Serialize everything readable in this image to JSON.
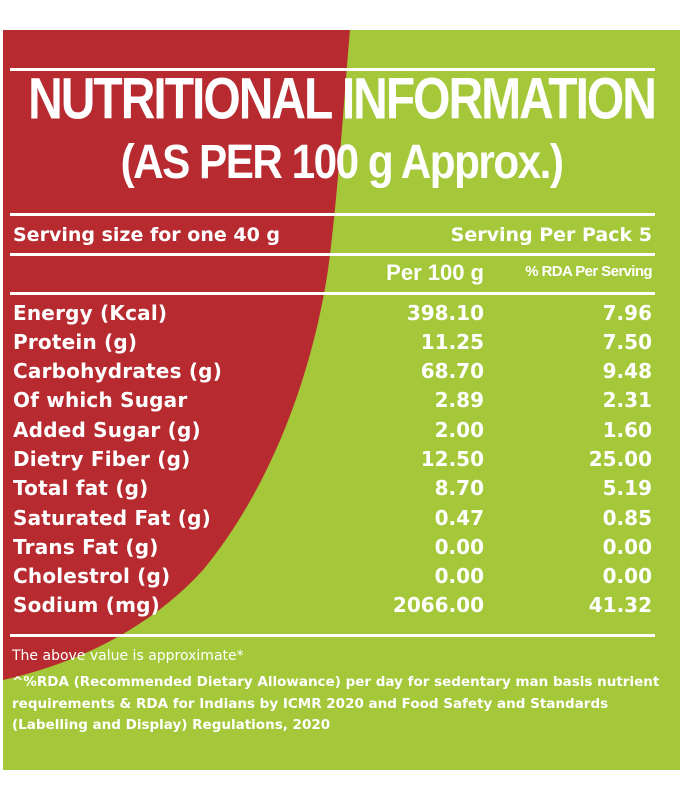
{
  "colors": {
    "red": "#b72b30",
    "green": "#a4c83a",
    "text": "#ffffff"
  },
  "title": {
    "main": "NUTRITIONAL INFORMATION",
    "sub": "(AS PER 100 g Approx.)"
  },
  "serving": {
    "size": "Serving size for one 40 g",
    "per_pack": "Serving Per Pack 5"
  },
  "table": {
    "headers": {
      "per_100g": "Per 100 g",
      "rda": "% RDA Per Serving"
    },
    "rows": [
      {
        "name": "Energy (Kcal)",
        "per_100g": "398.10",
        "rda": "7.96"
      },
      {
        "name": "Protein (g)",
        "per_100g": "11.25",
        "rda": "7.50"
      },
      {
        "name": "Carbohydrates (g)",
        "per_100g": "68.70",
        "rda": "9.48"
      },
      {
        "name": "Of which Sugar",
        "per_100g": "2.89",
        "rda": "2.31"
      },
      {
        "name": "Added Sugar (g)",
        "per_100g": "2.00",
        "rda": "1.60"
      },
      {
        "name": "Dietry Fiber (g)",
        "per_100g": "12.50",
        "rda": "25.00"
      },
      {
        "name": "Total fat (g)",
        "per_100g": "8.70",
        "rda": "5.19"
      },
      {
        "name": "Saturated Fat (g)",
        "per_100g": "0.47",
        "rda": "0.85"
      },
      {
        "name": "Trans Fat (g)",
        "per_100g": "0.00",
        "rda": "0.00"
      },
      {
        "name": "Cholestrol (g)",
        "per_100g": "0.00",
        "rda": "0.00"
      },
      {
        "name": "Sodium (mg)",
        "per_100g": "2066.00",
        "rda": "41.32"
      }
    ]
  },
  "notes": {
    "approx": "The above value is approximate*",
    "rda": "^%RDA (Recommended Dietary Allowance) per day for sedentary man basis nutrient requirements & RDA for Indians by ICMR 2020 and Food Safety and Standards (Labelling and Display) Regulations, 2020"
  }
}
